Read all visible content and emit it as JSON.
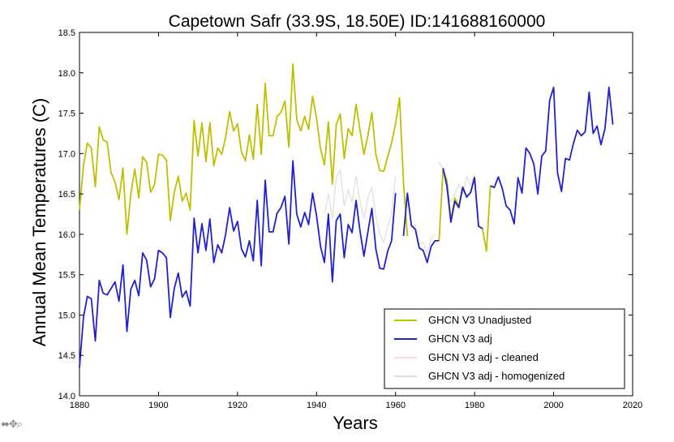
{
  "chart_data": {
    "type": "line",
    "title": "Capetown Safr (33.9S, 18.50E) ID:141688160000",
    "xlabel": "Years",
    "ylabel": "Annual Mean Temperatures (C)",
    "xlim": [
      1880,
      2020
    ],
    "ylim": [
      14.0,
      18.5
    ],
    "x_ticks": [
      1880,
      1900,
      1920,
      1940,
      1960,
      1980,
      2000,
      2020
    ],
    "y_ticks": [
      14.0,
      14.5,
      15.0,
      15.5,
      16.0,
      16.5,
      17.0,
      17.5,
      18.0,
      18.5
    ],
    "x_tick_labels": [
      "1880",
      "1900",
      "1920",
      "1940",
      "1960",
      "1980",
      "2000",
      "2020"
    ],
    "y_tick_labels": [
      "14.0",
      "14.5",
      "15.0",
      "15.5",
      "16.0",
      "16.5",
      "17.0",
      "17.5",
      "18.0",
      "18.5"
    ],
    "grid": false,
    "legend_position": "lower-right",
    "series": [
      {
        "name": "GHCN V3 Unadjusted",
        "color": "#bfbf00",
        "segments": [
          {
            "x": [
              1880,
              1881,
              1882,
              1883,
              1884,
              1885,
              1886,
              1887,
              1888,
              1889,
              1890,
              1891,
              1892,
              1893,
              1894,
              1895,
              1896,
              1897,
              1898,
              1899,
              1900,
              1901,
              1902,
              1903,
              1904,
              1905,
              1906,
              1907,
              1908,
              1909,
              1910,
              1911,
              1912,
              1913,
              1914,
              1915,
              1916,
              1917,
              1918,
              1919,
              1920,
              1921,
              1922,
              1923,
              1924,
              1925,
              1926,
              1927,
              1928,
              1929,
              1930,
              1931,
              1932,
              1933,
              1934,
              1935,
              1936,
              1937,
              1938,
              1939,
              1940,
              1941,
              1942,
              1943,
              1944,
              1945,
              1946,
              1947,
              1948,
              1949,
              1950,
              1951,
              1952,
              1953,
              1954,
              1955,
              1956,
              1957,
              1958,
              1959,
              1960,
              1961,
              1962
            ],
            "y": [
              16.3,
              16.85,
              17.13,
              17.07,
              16.59,
              17.33,
              17.17,
              17.14,
              16.76,
              16.65,
              16.43,
              16.82,
              16.0,
              16.5,
              16.81,
              16.45,
              16.96,
              16.89,
              16.52,
              16.62,
              16.99,
              16.98,
              16.92,
              16.17,
              16.52,
              16.72,
              16.41,
              16.51,
              16.3,
              17.41,
              16.97,
              17.38,
              16.9,
              17.38,
              16.85,
              17.07,
              16.99,
              17.2,
              17.52,
              17.28,
              17.37,
              17.02,
              16.91,
              17.23,
              16.93,
              17.61,
              16.99,
              17.87,
              17.22,
              17.22,
              17.46,
              17.51,
              17.65,
              17.08,
              18.11,
              17.42,
              17.28,
              17.46,
              17.3,
              17.71,
              17.44,
              17.06,
              16.86,
              17.39,
              16.62,
              17.36,
              17.49,
              16.94,
              17.31,
              17.22,
              17.61,
              17.29,
              16.99,
              17.22,
              17.51,
              16.99,
              16.79,
              16.78,
              16.96,
              17.13,
              17.37,
              17.69,
              16.64
            ]
          },
          {
            "x": [
              1962,
              1963
            ],
            "y": [
              16.64,
              15.98
            ]
          },
          {
            "x": [
              1971,
              1972,
              1973,
              1974,
              1975,
              1976,
              1977,
              1978,
              1979,
              1980,
              1981,
              1982,
              1983,
              1984
            ],
            "y": [
              15.92,
              16.8,
              16.67,
              16.18,
              16.45,
              16.35,
              16.59,
              16.47,
              16.52,
              16.71,
              16.1,
              16.07,
              15.79,
              16.6
            ]
          }
        ]
      },
      {
        "name": "GHCN V3 adj",
        "color": "#2020d0",
        "segments": [
          {
            "x": [
              1880,
              1881,
              1882,
              1883,
              1884,
              1885,
              1886,
              1887,
              1888,
              1889,
              1890,
              1891,
              1892,
              1893,
              1894,
              1895,
              1896,
              1897,
              1898,
              1899,
              1900,
              1901,
              1902,
              1903,
              1904,
              1905,
              1906,
              1907,
              1908,
              1909,
              1910,
              1911,
              1912,
              1913,
              1914,
              1915,
              1916,
              1917,
              1918,
              1919,
              1920,
              1921,
              1922,
              1923,
              1924,
              1925,
              1926,
              1927,
              1928,
              1929,
              1930,
              1931,
              1932,
              1933,
              1934,
              1935,
              1936,
              1937,
              1938,
              1939,
              1940,
              1941,
              1942,
              1943,
              1944,
              1945,
              1946,
              1947,
              1948,
              1949,
              1950,
              1951,
              1952,
              1953,
              1954,
              1955,
              1956,
              1957,
              1958,
              1959,
              1960
            ],
            "y": [
              14.35,
              14.97,
              15.23,
              15.2,
              14.68,
              15.43,
              15.27,
              15.25,
              15.33,
              15.41,
              15.17,
              15.62,
              14.8,
              15.32,
              15.43,
              15.24,
              15.77,
              15.68,
              15.35,
              15.45,
              15.8,
              15.77,
              15.71,
              14.97,
              15.33,
              15.52,
              15.22,
              15.3,
              15.11,
              16.2,
              15.77,
              16.13,
              15.8,
              16.19,
              15.65,
              15.87,
              15.77,
              16.0,
              16.33,
              16.04,
              16.16,
              15.82,
              15.72,
              15.92,
              15.67,
              16.42,
              15.61,
              16.67,
              16.03,
              16.03,
              16.26,
              16.33,
              16.47,
              15.88,
              16.91,
              16.25,
              16.09,
              16.27,
              16.12,
              16.51,
              16.23,
              15.85,
              15.65,
              16.25,
              15.41,
              16.17,
              16.25,
              15.71,
              16.12,
              16.02,
              16.42,
              16.04,
              15.73,
              16.03,
              16.32,
              15.82,
              15.58,
              15.57,
              15.79,
              15.92,
              16.51
            ]
          },
          {
            "x": [
              1962,
              1963,
              1964,
              1965,
              1966,
              1967,
              1968,
              1969,
              1970,
              1971
            ],
            "y": [
              15.98,
              16.51,
              16.11,
              16.06,
              15.83,
              15.8,
              15.65,
              15.85,
              15.92,
              15.92
            ]
          },
          {
            "x": [
              1972,
              1973,
              1974,
              1975,
              1976,
              1977,
              1978,
              1979,
              1980,
              1981,
              1982
            ],
            "y": [
              16.82,
              16.6,
              16.15,
              16.41,
              16.33,
              16.58,
              16.46,
              16.52,
              16.7,
              16.1,
              16.07
            ]
          },
          {
            "x": [
              1984,
              1985,
              1986,
              1987,
              1988,
              1989,
              1990,
              1991,
              1992,
              1993,
              1994,
              1995,
              1996,
              1997,
              1998,
              1999,
              2000,
              2001,
              2002,
              2003,
              2004,
              2005,
              2006,
              2007,
              2008,
              2009,
              2010,
              2011,
              2012,
              2013,
              2014,
              2015
            ],
            "y": [
              16.6,
              16.58,
              16.71,
              16.57,
              16.35,
              16.3,
              16.13,
              16.7,
              16.51,
              17.07,
              17.0,
              16.87,
              16.5,
              16.97,
              17.03,
              17.66,
              17.82,
              16.76,
              16.53,
              16.94,
              16.92,
              17.12,
              17.29,
              17.22,
              17.27,
              17.76,
              17.25,
              17.34,
              17.11,
              17.31,
              17.82,
              17.36
            ]
          }
        ]
      },
      {
        "name": "GHCN V3 adj - cleaned",
        "color": "#ffd6da",
        "segments": []
      },
      {
        "name": "GHCN V3 adj - homogenized",
        "color": "#dedede",
        "segments": [
          {
            "x": [
              1942,
              1943,
              1944,
              1945,
              1946,
              1947,
              1948,
              1949,
              1950,
              1951,
              1952,
              1953,
              1954,
              1955,
              1956,
              1957,
              1958,
              1959,
              1960
            ],
            "y": [
              16.25,
              16.5,
              16.2,
              16.7,
              16.8,
              16.35,
              16.55,
              16.4,
              16.72,
              16.4,
              16.2,
              16.45,
              16.58,
              16.22,
              16.0,
              15.9,
              16.1,
              16.25,
              16.72
            ]
          },
          {
            "x": [
              1962,
              1963,
              1964,
              1965,
              1966,
              1967,
              1968,
              1969,
              1970
            ],
            "y": [
              16.05,
              16.48,
              16.08,
              16.12,
              15.88,
              15.9,
              15.75,
              15.95,
              16.0
            ]
          },
          {
            "x": [
              1971,
              1972,
              1973,
              1974,
              1975,
              1976,
              1977,
              1978,
              1979,
              1980
            ],
            "y": [
              16.9,
              16.8,
              16.55,
              16.4,
              16.5,
              16.62,
              16.5,
              16.72,
              16.6,
              16.75
            ]
          }
        ]
      }
    ]
  }
}
